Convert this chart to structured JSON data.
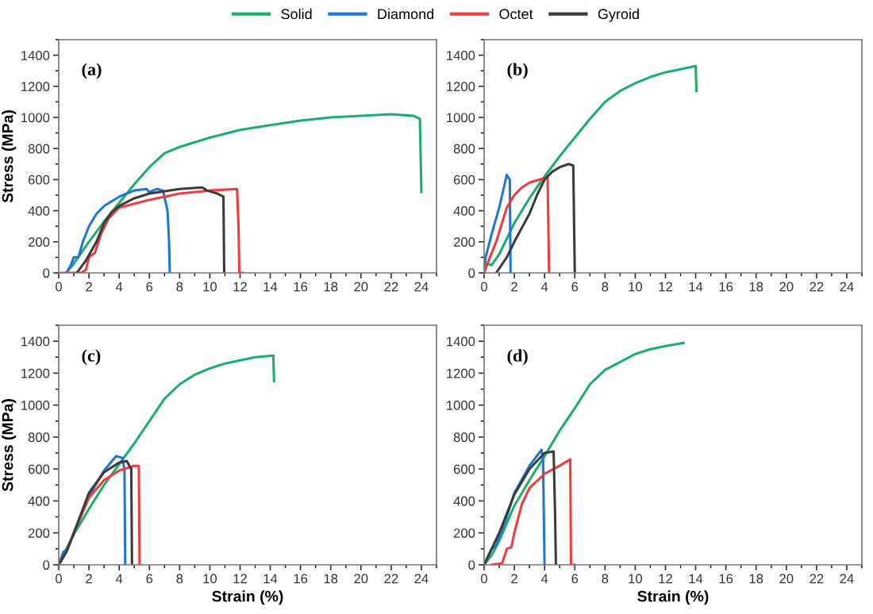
{
  "chart_data": [
    {
      "type": "line",
      "ylabel": "Stress (MPa)",
      "annotations": [
        "(a)"
      ],
      "xlim": [
        0,
        25
      ],
      "ylim": [
        0,
        1500
      ],
      "xticks": [
        0,
        2,
        4,
        6,
        8,
        10,
        12,
        14,
        16,
        18,
        20,
        22,
        24
      ],
      "yticks": [
        0,
        200,
        400,
        600,
        800,
        1000,
        1200,
        1400
      ],
      "grid": false,
      "legend": "top",
      "series": [
        {
          "name": "Solid",
          "color": "#1aaf6c",
          "x": [
            0.5,
            1,
            2,
            3,
            4,
            5,
            6,
            7,
            8,
            10,
            12,
            14,
            16,
            18,
            20,
            22,
            23.5,
            23.9,
            24
          ],
          "values": [
            0,
            60,
            200,
            330,
            450,
            570,
            680,
            770,
            810,
            870,
            920,
            950,
            980,
            1000,
            1010,
            1020,
            1010,
            990,
            520
          ]
        },
        {
          "name": "Diamond",
          "color": "#1f77d4",
          "x": [
            0.5,
            0.8,
            1,
            1.3,
            1.6,
            2,
            2.5,
            3,
            4,
            5,
            5.8,
            6,
            6.5,
            6.9,
            7.2,
            7.3,
            7.35
          ],
          "values": [
            0,
            50,
            100,
            100,
            200,
            300,
            380,
            430,
            490,
            530,
            540,
            520,
            540,
            530,
            400,
            200,
            0
          ]
        },
        {
          "name": "Octet",
          "color": "#f03c3c",
          "x": [
            0,
            1.5,
            1.8,
            2,
            2.4,
            2.8,
            3.3,
            4,
            6,
            8,
            10,
            11.8,
            11.9,
            11.95,
            12.2
          ],
          "values": [
            0,
            0,
            20,
            100,
            130,
            250,
            350,
            420,
            470,
            510,
            530,
            540,
            300,
            0,
            0
          ]
        },
        {
          "name": "Gyroid",
          "color": "#3c3c3c",
          "x": [
            1.2,
            1.8,
            2.5,
            3,
            3.5,
            4,
            5,
            6,
            8,
            9.5,
            9.8,
            10.5,
            10.9,
            10.95
          ],
          "values": [
            0,
            80,
            200,
            320,
            390,
            430,
            480,
            510,
            540,
            550,
            530,
            510,
            490,
            0
          ]
        }
      ]
    },
    {
      "type": "line",
      "annotations": [
        "(b)"
      ],
      "xlim": [
        0,
        25
      ],
      "ylim": [
        0,
        1500
      ],
      "xticks": [
        0,
        2,
        4,
        6,
        8,
        10,
        12,
        14,
        16,
        18,
        20,
        22,
        24
      ],
      "yticks": [
        0,
        200,
        400,
        600,
        800,
        1000,
        1200,
        1400
      ],
      "grid": false,
      "series": [
        {
          "color": "#1aaf6c",
          "x": [
            0,
            0.2,
            0.5,
            1,
            2,
            3,
            4,
            5,
            6,
            7,
            8,
            9,
            10,
            11,
            12,
            13,
            14,
            14.05
          ],
          "values": [
            0,
            60,
            50,
            120,
            320,
            480,
            620,
            750,
            870,
            990,
            1100,
            1170,
            1220,
            1260,
            1290,
            1310,
            1330,
            1170
          ]
        },
        {
          "color": "#1f77d4",
          "x": [
            0,
            0.1,
            0.5,
            1,
            1.5,
            1.7,
            1.75
          ],
          "values": [
            0,
            100,
            250,
            420,
            630,
            600,
            0
          ]
        },
        {
          "color": "#f03c3c",
          "x": [
            0,
            0.3,
            0.8,
            1.5,
            2,
            2.5,
            3,
            4,
            4.2,
            4.3
          ],
          "values": [
            0,
            80,
            200,
            420,
            500,
            550,
            580,
            610,
            620,
            0
          ]
        },
        {
          "color": "#3c3c3c",
          "x": [
            0.8,
            1.5,
            2,
            3,
            3.5,
            4,
            4.5,
            5,
            5.6,
            5.9,
            6
          ],
          "values": [
            0,
            100,
            200,
            380,
            500,
            600,
            650,
            680,
            700,
            690,
            0
          ]
        }
      ]
    },
    {
      "type": "line",
      "xlabel": "Strain (%)",
      "ylabel": "Stress (MPa)",
      "annotations": [
        "(c)"
      ],
      "xlim": [
        0,
        25
      ],
      "ylim": [
        0,
        1500
      ],
      "xticks": [
        0,
        2,
        4,
        6,
        8,
        10,
        12,
        14,
        16,
        18,
        20,
        22,
        24
      ],
      "yticks": [
        0,
        200,
        400,
        600,
        800,
        1000,
        1200,
        1400
      ],
      "grid": false,
      "series": [
        {
          "color": "#1aaf6c",
          "x": [
            0,
            0.5,
            1,
            2,
            3,
            4,
            5,
            6,
            7,
            8,
            9,
            10,
            11,
            12,
            13,
            14.2,
            14.25
          ],
          "values": [
            0,
            100,
            190,
            350,
            500,
            630,
            760,
            900,
            1040,
            1130,
            1190,
            1230,
            1260,
            1280,
            1300,
            1310,
            1150
          ]
        },
        {
          "color": "#1f77d4",
          "x": [
            0,
            0.3,
            0.6,
            1,
            2,
            3,
            3.8,
            4.2,
            4.35,
            4.4
          ],
          "values": [
            0,
            80,
            100,
            200,
            430,
            590,
            680,
            670,
            600,
            0
          ]
        },
        {
          "color": "#f03c3c",
          "x": [
            0,
            0.5,
            1,
            2,
            3,
            4,
            5,
            5.3,
            5.35
          ],
          "values": [
            0,
            80,
            200,
            420,
            530,
            590,
            620,
            620,
            0
          ]
        },
        {
          "color": "#3c3c3c",
          "x": [
            0,
            0.5,
            1,
            2,
            3,
            4,
            4.5,
            4.8,
            4.85
          ],
          "values": [
            0,
            80,
            200,
            450,
            580,
            640,
            650,
            600,
            0
          ]
        }
      ]
    },
    {
      "type": "line",
      "xlabel": "Strain (%)",
      "annotations": [
        "(d)"
      ],
      "xlim": [
        0,
        25
      ],
      "ylim": [
        0,
        1500
      ],
      "xticks": [
        0,
        2,
        4,
        6,
        8,
        10,
        12,
        14,
        16,
        18,
        20,
        22,
        24
      ],
      "yticks": [
        0,
        200,
        400,
        600,
        800,
        1000,
        1200,
        1400
      ],
      "grid": false,
      "series": [
        {
          "color": "#1aaf6c",
          "x": [
            0,
            0.5,
            1,
            2,
            3,
            4,
            5,
            6,
            7,
            8,
            9,
            10,
            11,
            12,
            13.2
          ],
          "values": [
            0,
            60,
            150,
            370,
            530,
            680,
            840,
            980,
            1130,
            1220,
            1270,
            1320,
            1350,
            1370,
            1390
          ]
        },
        {
          "color": "#1f77d4",
          "x": [
            0,
            0.5,
            0.8,
            1.5,
            2,
            3,
            3.8,
            3.9,
            4
          ],
          "values": [
            0,
            100,
            120,
            300,
            450,
            620,
            720,
            650,
            0
          ]
        },
        {
          "color": "#f03c3c",
          "x": [
            0.5,
            1.2,
            1.5,
            1.8,
            2,
            2.5,
            3,
            4,
            5,
            5.7,
            5.75,
            6
          ],
          "values": [
            0,
            10,
            100,
            110,
            200,
            380,
            480,
            570,
            620,
            660,
            0,
            0
          ]
        },
        {
          "color": "#3c3c3c",
          "x": [
            0,
            0.5,
            1,
            2,
            3,
            4,
            4.6,
            4.7,
            4.75
          ],
          "values": [
            0,
            100,
            200,
            440,
            600,
            700,
            710,
            300,
            0
          ]
        }
      ]
    }
  ]
}
